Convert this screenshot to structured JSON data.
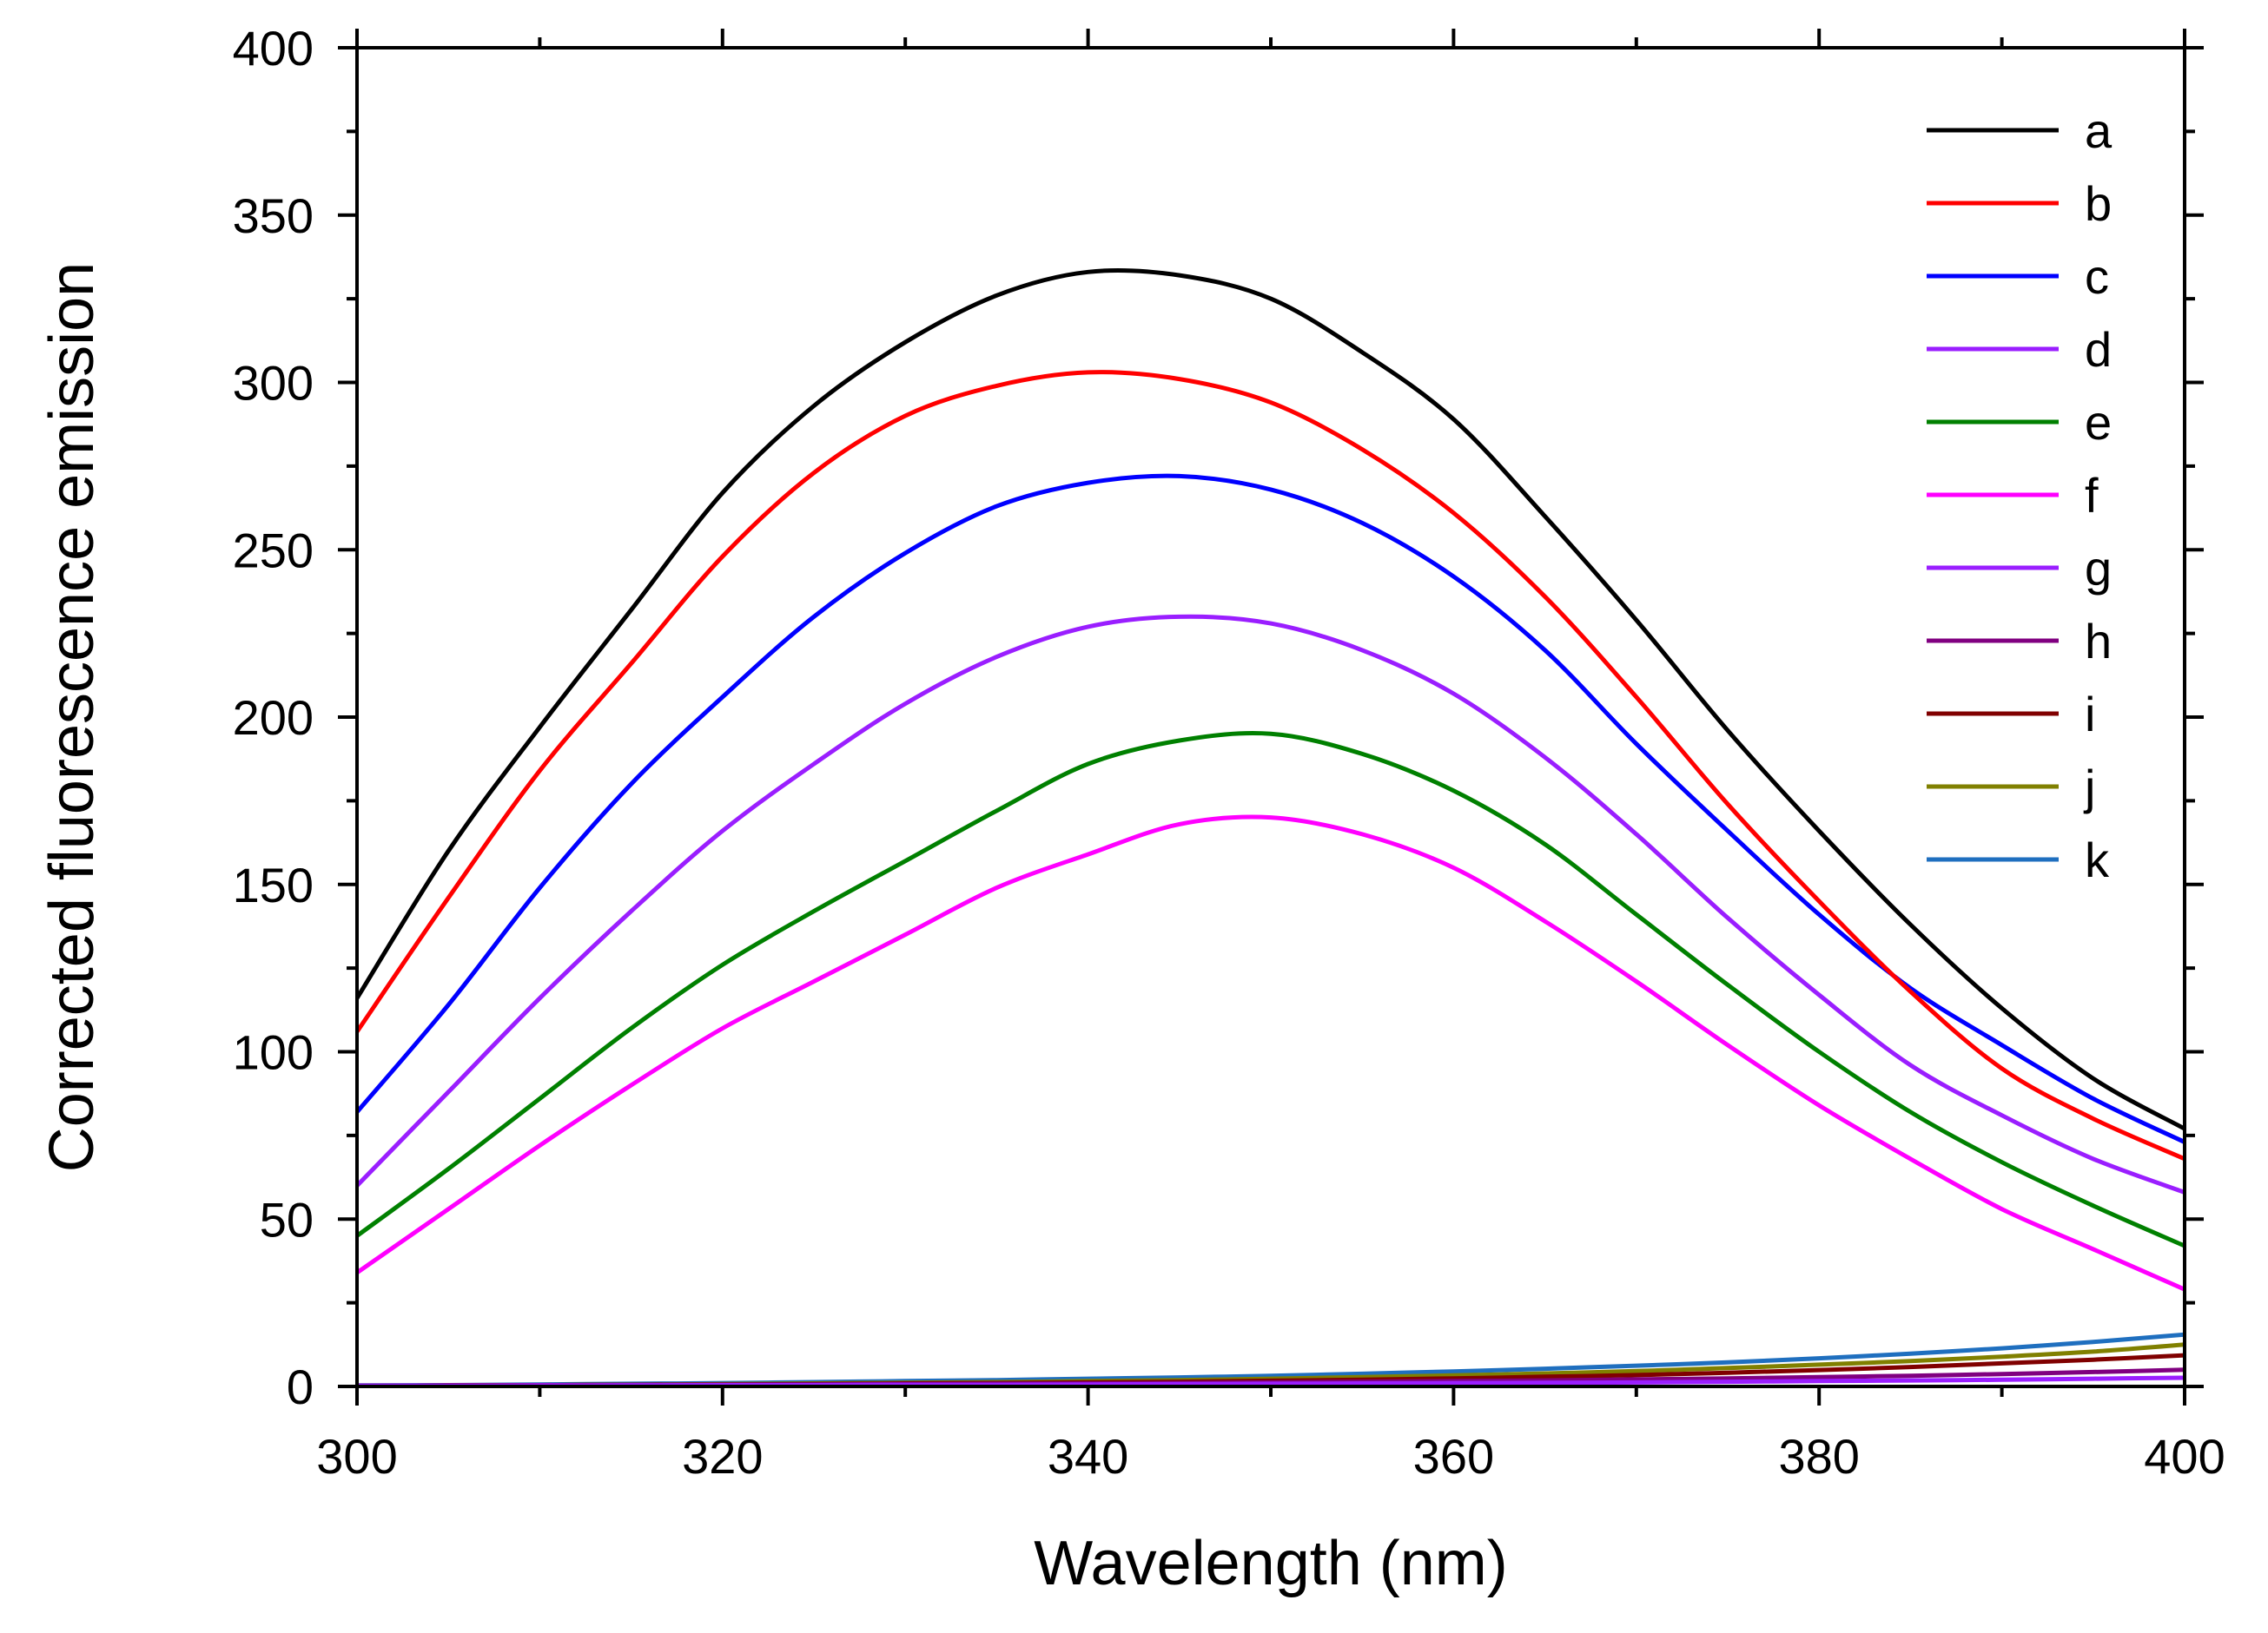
{
  "chart_data": {
    "type": "line",
    "xlabel": "Wavelength (nm)",
    "ylabel": "Corrected fluorescence emission",
    "xlim": [
      300,
      400
    ],
    "ylim": [
      0,
      400
    ],
    "xticks": [
      300,
      320,
      340,
      360,
      380,
      400
    ],
    "yticks": [
      0,
      50,
      100,
      150,
      200,
      250,
      300,
      350,
      400
    ],
    "grid": false,
    "legend_position": "top-right",
    "x": [
      300,
      305,
      310,
      315,
      320,
      325,
      330,
      335,
      340,
      345,
      350,
      355,
      360,
      365,
      370,
      375,
      380,
      385,
      390,
      395,
      400
    ],
    "series": [
      {
        "name": "a",
        "color": "#000000",
        "values": [
          116,
          160,
          197,
          232,
          267,
          293,
          312,
          326,
          333,
          332,
          325,
          309,
          289,
          260,
          229,
          196,
          166,
          138,
          113,
          92,
          77
        ]
      },
      {
        "name": "b",
        "color": "#ff0000",
        "values": [
          106,
          146,
          184,
          216,
          248,
          273,
          290,
          299,
          303,
          301,
          294,
          280,
          261,
          236,
          206,
          174,
          145,
          118,
          95,
          80,
          68
        ]
      },
      {
        "name": "c",
        "color": "#0000ff",
        "values": [
          82,
          114,
          149,
          180,
          206,
          230,
          249,
          263,
          270,
          272,
          268,
          258,
          242,
          220,
          192,
          166,
          141,
          119,
          102,
          86,
          73
        ]
      },
      {
        "name": "d",
        "color": "#9a1eff",
        "values": [
          60,
          88,
          116,
          142,
          166,
          186,
          204,
          218,
          227,
          230,
          228,
          220,
          207,
          188,
          165,
          140,
          117,
          96,
          81,
          68,
          58
        ]
      },
      {
        "name": "e",
        "color": "#008000",
        "values": [
          45,
          65,
          86,
          107,
          126,
          142,
          157,
          172,
          186,
          193,
          195,
          189,
          178,
          162,
          141,
          120,
          100,
          82,
          67,
          54,
          42
        ]
      },
      {
        "name": "f",
        "color": "#ff00ff",
        "values": [
          34,
          53,
          72,
          90,
          107,
          121,
          135,
          149,
          159,
          168,
          170,
          165,
          155,
          139,
          121,
          102,
          84,
          68,
          53,
          41,
          29
        ]
      },
      {
        "name": "g",
        "color": "#9a1eff",
        "values": [
          0.2,
          0.2,
          0.3,
          0.3,
          0.4,
          0.4,
          0.5,
          0.5,
          0.6,
          0.7,
          0.8,
          0.9,
          1.0,
          1.1,
          1.2,
          1.4,
          1.6,
          1.8,
          2.0,
          2.3,
          2.6
        ]
      },
      {
        "name": "h",
        "color": "#800080",
        "values": [
          0.2,
          0.3,
          0.3,
          0.4,
          0.5,
          0.6,
          0.7,
          0.8,
          0.9,
          1.0,
          1.2,
          1.4,
          1.6,
          1.8,
          2.1,
          2.4,
          2.8,
          3.2,
          3.7,
          4.3,
          5.0
        ]
      },
      {
        "name": "i",
        "color": "#800000",
        "values": [
          0.2,
          0.3,
          0.4,
          0.5,
          0.6,
          0.7,
          0.9,
          1.0,
          1.2,
          1.4,
          1.7,
          2.0,
          2.4,
          2.9,
          3.4,
          4.1,
          4.9,
          5.8,
          6.9,
          8.0,
          9.3
        ]
      },
      {
        "name": "j",
        "color": "#808000",
        "values": [
          0.2,
          0.3,
          0.4,
          0.5,
          0.7,
          0.9,
          1.1,
          1.3,
          1.6,
          1.9,
          2.3,
          2.8,
          3.3,
          3.9,
          4.6,
          5.5,
          6.5,
          7.6,
          8.9,
          10.4,
          12.5
        ]
      },
      {
        "name": "k",
        "color": "#1f6fbf",
        "values": [
          0.3,
          0.4,
          0.6,
          0.8,
          1.0,
          1.3,
          1.6,
          1.9,
          2.3,
          2.7,
          3.2,
          3.8,
          4.5,
          5.3,
          6.2,
          7.2,
          8.4,
          9.8,
          11.4,
          13.3,
          15.5
        ]
      }
    ]
  }
}
